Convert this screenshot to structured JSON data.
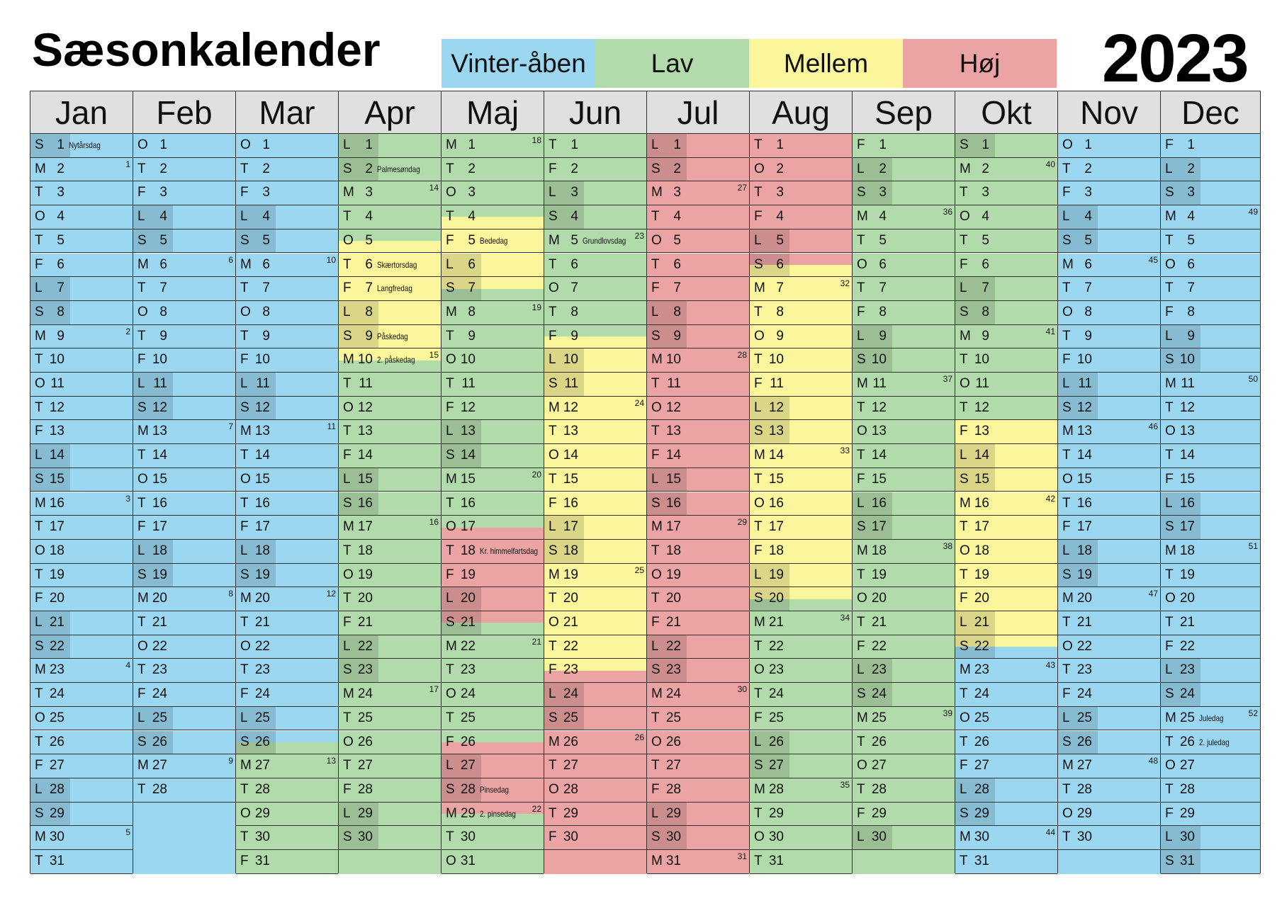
{
  "title": "Sæsonkalender",
  "year": "2023",
  "colors": {
    "vinter": "#9cd7f2",
    "lav": "#b2dbab",
    "mellem": "#fbf59c",
    "hoj": "#eba3a3"
  },
  "legend": [
    {
      "key": "vinter",
      "label": "Vinter-åben"
    },
    {
      "key": "lav",
      "label": "Lav"
    },
    {
      "key": "mellem",
      "label": "Mellem"
    },
    {
      "key": "hoj",
      "label": "Høj"
    }
  ],
  "months": [
    {
      "name": "Jan",
      "days": 31,
      "first": 0,
      "seasons": [
        "vinter"
      ],
      "holidays": {
        "1": "Nytårsdag"
      },
      "weeks": {
        "2": "1",
        "9": "2",
        "16": "3",
        "23": "4",
        "30": "5"
      }
    },
    {
      "name": "Feb",
      "days": 28,
      "first": 3,
      "seasons": [
        "vinter"
      ],
      "holidays": {},
      "weeks": {
        "6": "6",
        "13": "7",
        "20": "8",
        "27": "9"
      }
    },
    {
      "name": "Mar",
      "days": 31,
      "first": 3,
      "seasons": [
        "vinter",
        "vinter",
        "vinter",
        "vinter",
        "vinter",
        "vinter",
        "vinter",
        "vinter",
        "vinter",
        "vinter",
        "vinter",
        "vinter",
        "vinter",
        "vinter",
        "vinter",
        "vinter",
        "vinter",
        "vinter",
        "vinter",
        "vinter",
        "vinter",
        "vinter",
        "vinter",
        "vinter",
        "vinter",
        "vinter|lav",
        "lav",
        "lav",
        "lav",
        "lav",
        "lav"
      ],
      "holidays": {},
      "weeks": {
        "6": "10",
        "13": "11",
        "20": "12",
        "27": "13"
      }
    },
    {
      "name": "Apr",
      "days": 30,
      "first": 6,
      "seasons": [
        "lav",
        "lav",
        "lav",
        "lav",
        "lav|mellem",
        "mellem",
        "mellem",
        "mellem",
        "mellem",
        "mellem|lav",
        "lav",
        "lav",
        "lav",
        "lav",
        "lav",
        "lav",
        "lav",
        "lav",
        "lav",
        "lav",
        "lav",
        "lav",
        "lav",
        "lav",
        "lav",
        "lav",
        "lav",
        "lav",
        "lav",
        "lav"
      ],
      "holidays": {
        "2": "Palmesøndag",
        "6": "Skærtorsdag",
        "7": "Langfredag",
        "9": "Påskedag",
        "10": "2. påskedag"
      },
      "weeks": {
        "3": "14",
        "10": "15",
        "17": "16",
        "24": "17"
      }
    },
    {
      "name": "Maj",
      "days": 31,
      "first": 1,
      "seasons": [
        "lav",
        "lav",
        "lav",
        "lav|mellem",
        "mellem",
        "mellem",
        "mellem|lav",
        "lav",
        "lav",
        "lav",
        "lav",
        "lav",
        "lav",
        "lav",
        "lav",
        "lav",
        "lav|hoj",
        "hoj",
        "hoj",
        "hoj",
        "hoj|lav",
        "lav",
        "lav",
        "lav",
        "lav",
        "lav|hoj",
        "hoj",
        "hoj",
        "hoj|lav",
        "lav",
        "lav"
      ],
      "holidays": {
        "5": "Bededag",
        "18": "Kr. himmelfartsdag",
        "28": "Pinsedag",
        "29": "2. pinsedag"
      },
      "weeks": {
        "1": "18",
        "8": "19",
        "15": "20",
        "22": "21",
        "29": "22"
      }
    },
    {
      "name": "Jun",
      "days": 30,
      "first": 4,
      "seasons": [
        "lav",
        "lav",
        "lav",
        "lav",
        "lav",
        "lav",
        "lav",
        "lav",
        "lav|mellem",
        "mellem",
        "mellem",
        "mellem",
        "mellem",
        "mellem",
        "mellem",
        "mellem",
        "mellem",
        "mellem",
        "mellem",
        "mellem",
        "mellem",
        "mellem",
        "mellem|hoj",
        "hoj",
        "hoj",
        "hoj",
        "hoj",
        "hoj",
        "hoj",
        "hoj"
      ],
      "holidays": {
        "5": "Grundlovsdag"
      },
      "weeks": {
        "5": "23",
        "12": "24",
        "19": "25",
        "26": "26"
      }
    },
    {
      "name": "Jul",
      "days": 31,
      "first": 6,
      "seasons": [
        "hoj"
      ],
      "holidays": {},
      "weeks": {
        "3": "27",
        "10": "28",
        "17": "29",
        "24": "30",
        "31": "31"
      }
    },
    {
      "name": "Aug",
      "days": 31,
      "first": 2,
      "seasons": [
        "hoj",
        "hoj",
        "hoj",
        "hoj",
        "hoj",
        "hoj|mellem",
        "mellem",
        "mellem",
        "mellem",
        "mellem",
        "mellem",
        "mellem",
        "mellem",
        "mellem",
        "mellem",
        "mellem",
        "mellem",
        "mellem",
        "mellem",
        "mellem|lav",
        "lav",
        "lav",
        "lav",
        "lav",
        "lav",
        "lav",
        "lav",
        "lav",
        "lav",
        "lav",
        "lav"
      ],
      "holidays": {},
      "weeks": {
        "7": "32",
        "14": "33",
        "21": "34",
        "28": "35"
      }
    },
    {
      "name": "Sep",
      "days": 30,
      "first": 5,
      "seasons": [
        "lav"
      ],
      "holidays": {},
      "weeks": {
        "4": "36",
        "11": "37",
        "18": "38",
        "25": "39"
      }
    },
    {
      "name": "Okt",
      "days": 31,
      "first": 0,
      "seasons": [
        "lav",
        "lav",
        "lav",
        "lav",
        "lav",
        "lav",
        "lav",
        "lav",
        "lav",
        "lav",
        "lav",
        "lav",
        "mellem",
        "mellem",
        "mellem",
        "mellem",
        "mellem",
        "mellem",
        "mellem",
        "mellem",
        "mellem",
        "mellem|vinter",
        "vinter",
        "vinter",
        "vinter",
        "vinter",
        "vinter",
        "vinter",
        "vinter",
        "vinter",
        "vinter"
      ],
      "holidays": {},
      "weeks": {
        "2": "40",
        "9": "41",
        "16": "42",
        "23": "43",
        "30": "44"
      }
    },
    {
      "name": "Nov",
      "days": 30,
      "first": 3,
      "seasons": [
        "vinter"
      ],
      "holidays": {},
      "weeks": {
        "6": "45",
        "13": "46",
        "20": "47",
        "27": "48"
      }
    },
    {
      "name": "Dec",
      "days": 31,
      "first": 5,
      "seasons": [
        "vinter"
      ],
      "holidays": {
        "25": "Juledag",
        "26": "2. juledag"
      },
      "weeks": {
        "4": "49",
        "11": "50",
        "18": "51",
        "25": "52"
      }
    }
  ],
  "day_letters": [
    "S",
    "M",
    "T",
    "O",
    "T",
    "F",
    "L"
  ]
}
